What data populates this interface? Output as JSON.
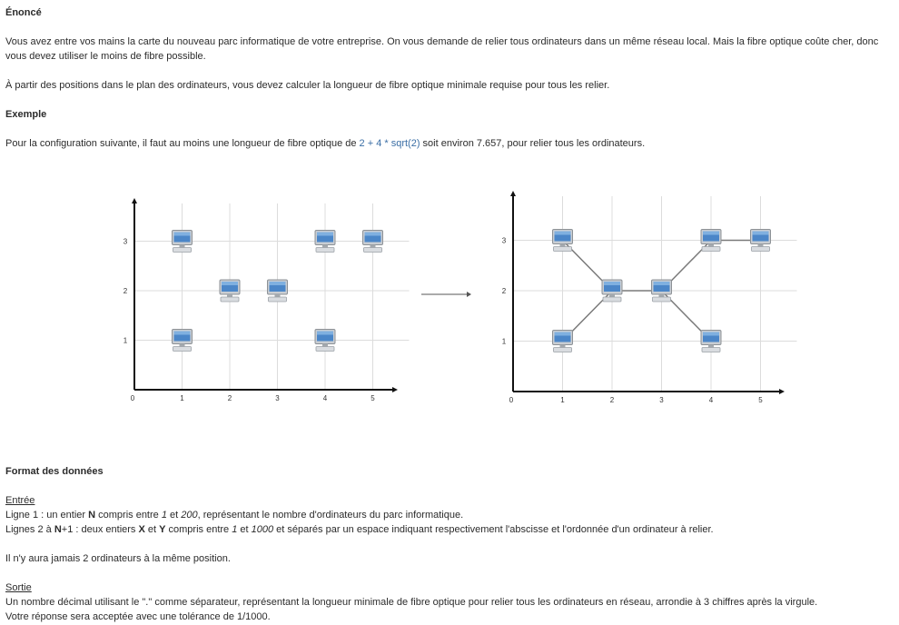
{
  "enonce": {
    "title": "Énoncé",
    "p1": "Vous avez entre vos mains la carte du nouveau parc informatique de votre entreprise. On vous demande de relier tous ordinateurs dans un même réseau local. Mais la fibre optique coûte cher, donc vous devez utiliser le moins de fibre possible.",
    "p2": "À partir des positions dans le plan des ordinateurs, vous devez calculer la longueur de fibre optique minimale requise pour tous les relier."
  },
  "exemple": {
    "title": "Exemple",
    "before": "Pour la configuration suivante, il faut au moins une longueur de fibre optique de ",
    "formula": "2 + 4 * sqrt(2)",
    "after": " soit environ 7.657, pour relier tous les ordinateurs."
  },
  "chart_data": [
    {
      "type": "scatter",
      "x_ticks": [
        "0",
        "1",
        "2",
        "3",
        "4",
        "5"
      ],
      "y_ticks": [
        "1",
        "2",
        "3"
      ],
      "points": [
        [
          1,
          3
        ],
        [
          4,
          3
        ],
        [
          5,
          3
        ],
        [
          2,
          2
        ],
        [
          3,
          2
        ],
        [
          1,
          1
        ],
        [
          4,
          1
        ]
      ],
      "marker": "computer-icon",
      "grid": true
    },
    {
      "type": "scatter",
      "x_ticks": [
        "0",
        "1",
        "2",
        "3",
        "4",
        "5"
      ],
      "y_ticks": [
        "1",
        "2",
        "3"
      ],
      "points": [
        [
          1,
          3
        ],
        [
          4,
          3
        ],
        [
          5,
          3
        ],
        [
          2,
          2
        ],
        [
          3,
          2
        ],
        [
          1,
          1
        ],
        [
          4,
          1
        ]
      ],
      "edges": [
        [
          [
            1,
            3
          ],
          [
            2,
            2
          ]
        ],
        [
          [
            1,
            1
          ],
          [
            2,
            2
          ]
        ],
        [
          [
            2,
            2
          ],
          [
            3,
            2
          ]
        ],
        [
          [
            3,
            2
          ],
          [
            4,
            3
          ]
        ],
        [
          [
            3,
            2
          ],
          [
            4,
            1
          ]
        ],
        [
          [
            4,
            3
          ],
          [
            5,
            3
          ]
        ]
      ],
      "marker": "computer-icon",
      "grid": true
    }
  ],
  "format": {
    "title": "Format des données",
    "entree_label": "Entrée",
    "line1_a": "Ligne 1 : un entier ",
    "line1_b": "N",
    "line1_c": " compris entre ",
    "line1_d": "1",
    "line1_e": " et ",
    "line1_f": "200",
    "line1_g": ", représentant le nombre d'ordinateurs du parc informatique.",
    "line2_a": "Lignes 2 à ",
    "line2_b": "N",
    "line2_c": "+1 : deux entiers ",
    "line2_d": "X",
    "line2_e": " et ",
    "line2_f": "Y",
    "line2_g": " compris entre ",
    "line2_h": "1",
    "line2_i": " et ",
    "line2_j": "1000",
    "line2_k": " et séparés par un espace indiquant respectivement l'abscisse et l'ordonnée d'un ordinateur à relier.",
    "note": "Il n'y aura jamais 2 ordinateurs à la même position.",
    "sortie_label": "Sortie",
    "sortie_line1": "Un nombre décimal utilisant le \".\" comme séparateur, représentant la longueur minimale de fibre optique pour relier tous les ordinateurs en réseau, arrondie à 3 chiffres après la virgule.",
    "sortie_line2": "Votre réponse sera acceptée avec une tolérance de 1/1000."
  }
}
